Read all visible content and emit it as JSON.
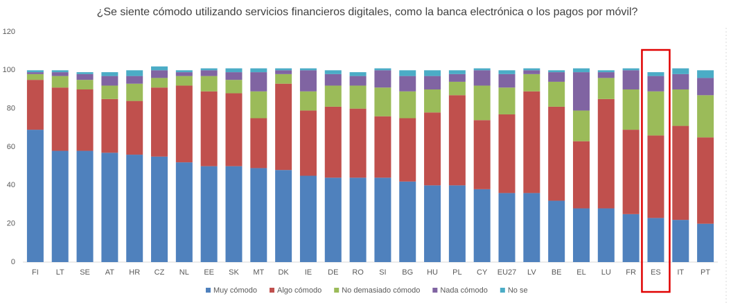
{
  "chart_data": {
    "type": "stacked_bar",
    "title": "¿Se siente cómodo utilizando servicios financieros digitales, como la banca electrónica o los pagos por móvil?",
    "categories": [
      "FI",
      "LT",
      "SE",
      "AT",
      "HR",
      "CZ",
      "NL",
      "EE",
      "SK",
      "MT",
      "DK",
      "IE",
      "DE",
      "RO",
      "SI",
      "BG",
      "HU",
      "PL",
      "CY",
      "EU27",
      "LV",
      "BE",
      "EL",
      "LU",
      "FR",
      "ES",
      "IT",
      "PT"
    ],
    "series": [
      {
        "name": "Muy cómodo",
        "color": "#4f81bd",
        "values": [
          69,
          58,
          58,
          57,
          56,
          55,
          52,
          50,
          50,
          49,
          48,
          45,
          44,
          44,
          44,
          42,
          40,
          40,
          38,
          36,
          36,
          32,
          28,
          28,
          25,
          23,
          22,
          20
        ]
      },
      {
        "name": "Algo cómodo",
        "color": "#c0504d",
        "values": [
          26,
          33,
          32,
          28,
          28,
          36,
          40,
          39,
          38,
          26,
          45,
          34,
          37,
          36,
          32,
          33,
          38,
          47,
          36,
          41,
          53,
          49,
          35,
          57,
          44,
          43,
          49,
          45
        ]
      },
      {
        "name": "No demasiado cómodo",
        "color": "#9bbb59",
        "values": [
          3,
          6,
          5,
          7,
          9,
          5,
          5,
          8,
          7,
          14,
          5,
          10,
          11,
          12,
          15,
          14,
          12,
          7,
          18,
          14,
          9,
          13,
          16,
          11,
          21,
          23,
          19,
          22
        ]
      },
      {
        "name": "Nada cómodo",
        "color": "#8064a2",
        "values": [
          1,
          2,
          3,
          5,
          4,
          4,
          2,
          3,
          4,
          10,
          2,
          11,
          6,
          5,
          9,
          8,
          7,
          4,
          8,
          7,
          2,
          5,
          20,
          3,
          10,
          8,
          8,
          9
        ]
      },
      {
        "name": "No se",
        "color": "#4bacc6",
        "values": [
          1,
          1,
          1,
          2,
          3,
          2,
          1,
          1,
          2,
          2,
          1,
          1,
          2,
          2,
          1,
          3,
          3,
          2,
          1,
          2,
          1,
          1,
          2,
          1,
          1,
          2,
          3,
          4
        ]
      }
    ],
    "ylim": [
      0,
      120
    ],
    "yticks": [
      0,
      20,
      40,
      60,
      80,
      100,
      120
    ],
    "grid": false,
    "legend": "bottom"
  }
}
